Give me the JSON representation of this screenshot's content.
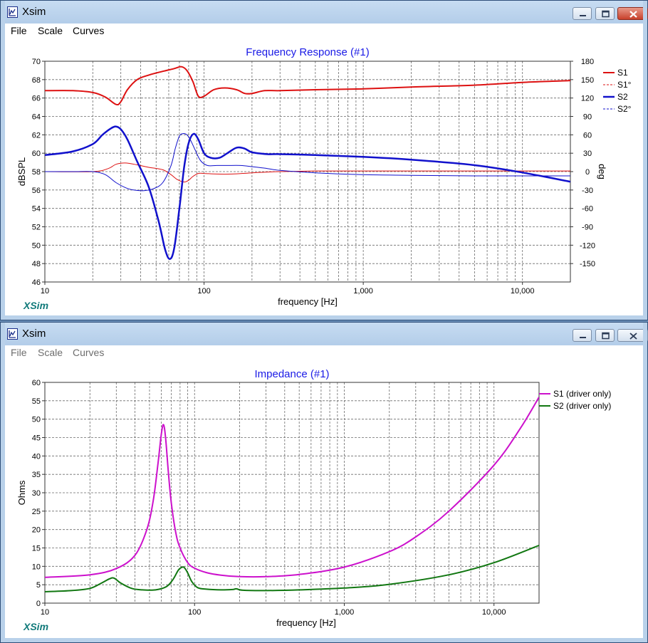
{
  "windows": [
    {
      "title": "Xsim",
      "menu": [
        "File",
        "Scale",
        "Curves"
      ],
      "active": true,
      "chart": {
        "title": "Frequency Response (#1)",
        "watermark": "XSim",
        "title_color": "#1a1ae6"
      }
    },
    {
      "title": "Xsim",
      "menu": [
        "File",
        "Scale",
        "Curves"
      ],
      "active": false,
      "chart": {
        "title": "Impedance (#1)",
        "watermark": "XSim",
        "title_color": "#1a1ae6"
      }
    }
  ],
  "chart_data": [
    {
      "type": "line",
      "title": "Frequency Response (#1)",
      "xlabel": "frequency [Hz]",
      "ylabel": "dBSPL",
      "y2label": "deg",
      "xscale": "log",
      "xlim": [
        10,
        20000
      ],
      "ylim": [
        46,
        70
      ],
      "y2lim": [
        -180,
        180
      ],
      "xticks": [
        10,
        100,
        1000,
        10000
      ],
      "xtick_labels": [
        "10",
        "100",
        "1,000",
        "10,000"
      ],
      "yticks": [
        46,
        48,
        50,
        52,
        54,
        56,
        58,
        60,
        62,
        64,
        66,
        68,
        70
      ],
      "y2ticks": [
        -150,
        -120,
        -90,
        -60,
        -30,
        0,
        30,
        60,
        90,
        120,
        150,
        180
      ],
      "grid": true,
      "legend_position": "right",
      "series": [
        {
          "name": "S1",
          "axis": "left",
          "color": "#dd1111",
          "width": 2,
          "dash": false,
          "x": [
            10,
            15,
            20,
            24,
            28,
            30,
            33,
            38,
            45,
            55,
            65,
            72,
            78,
            85,
            92,
            100,
            115,
            135,
            160,
            180,
            200,
            240,
            300,
            500,
            1000,
            2000,
            5000,
            10000,
            20000
          ],
          "y": [
            66.8,
            66.8,
            66.6,
            66.1,
            65.3,
            65.6,
            66.9,
            68,
            68.5,
            68.9,
            69.2,
            69.4,
            69.0,
            67.8,
            66.2,
            66.2,
            66.9,
            67.1,
            66.9,
            66.5,
            66.5,
            66.8,
            66.8,
            66.9,
            67.0,
            67.2,
            67.4,
            67.7,
            67.9
          ]
        },
        {
          "name": "S1°",
          "axis": "right",
          "color": "#dd1111",
          "width": 1,
          "dash": true,
          "x": [
            10,
            20,
            25,
            28,
            32,
            38,
            45,
            55,
            62,
            68,
            75,
            80,
            85,
            92,
            100,
            120,
            150,
            200,
            300,
            500,
            1000,
            2000,
            5000,
            10000,
            20000
          ],
          "y": [
            0,
            0,
            5,
            12,
            14,
            11,
            7,
            3,
            -5,
            -13,
            -17,
            -14,
            -8,
            -3,
            -3,
            -4,
            -4,
            -2,
            0,
            1,
            1,
            1,
            1,
            1,
            1
          ]
        },
        {
          "name": "S2",
          "axis": "left",
          "color": "#1111cc",
          "width": 2.5,
          "dash": false,
          "x": [
            10,
            15,
            20,
            23,
            26,
            28,
            30,
            33,
            38,
            45,
            52,
            57,
            61,
            65,
            70,
            75,
            80,
            86,
            92,
            100,
            110,
            125,
            140,
            160,
            180,
            200,
            250,
            300,
            500,
            1000,
            2000,
            5000,
            10000,
            20000
          ],
          "y": [
            59.8,
            60.2,
            61.0,
            62.0,
            62.7,
            62.9,
            62.6,
            61.5,
            59.1,
            56.3,
            52.5,
            49.5,
            48.5,
            49.7,
            54.0,
            58.5,
            61.1,
            62.1,
            61.5,
            60.0,
            59.5,
            59.5,
            60.0,
            60.6,
            60.5,
            60.1,
            59.9,
            59.9,
            59.8,
            59.6,
            59.3,
            58.7,
            57.9,
            56.9
          ]
        },
        {
          "name": "S2°",
          "axis": "right",
          "color": "#1111cc",
          "width": 1,
          "dash": true,
          "x": [
            10,
            15,
            20,
            24,
            28,
            32,
            36,
            42,
            48,
            55,
            62,
            66,
            70,
            74,
            78,
            82,
            88,
            95,
            105,
            120,
            140,
            170,
            200,
            250,
            300,
            500,
            1000,
            2000,
            5000,
            10000,
            20000
          ],
          "y": [
            0,
            0,
            0,
            -5,
            -18,
            -26,
            -30,
            -31,
            -28,
            -18,
            10,
            38,
            58,
            62,
            60,
            52,
            35,
            18,
            10,
            10,
            10,
            10,
            8,
            5,
            2,
            -2,
            -5,
            -6,
            -7,
            -7,
            -7
          ]
        }
      ]
    },
    {
      "type": "line",
      "title": "Impedance (#1)",
      "xlabel": "frequency [Hz]",
      "ylabel": "Ohms",
      "xscale": "log",
      "xlim": [
        10,
        20000
      ],
      "ylim": [
        0,
        60
      ],
      "xticks": [
        10,
        100,
        1000,
        10000
      ],
      "xtick_labels": [
        "10",
        "100",
        "1,000",
        "10,000"
      ],
      "yticks": [
        0,
        5,
        10,
        15,
        20,
        25,
        30,
        35,
        40,
        45,
        50,
        55,
        60
      ],
      "grid": true,
      "legend_position": "right",
      "series": [
        {
          "name": "S1 (driver only)",
          "color": "#cc11cc",
          "width": 2,
          "x": [
            10,
            20,
            30,
            40,
            48,
            53,
            57,
            60,
            62,
            64,
            67,
            70,
            75,
            80,
            90,
            100,
            120,
            150,
            200,
            300,
            500,
            1000,
            2000,
            3000,
            5000,
            10000,
            15000,
            20000
          ],
          "y": [
            7,
            7.7,
            9.4,
            13,
            20,
            28,
            38,
            46,
            48.5,
            45,
            35,
            27,
            19,
            15,
            11,
            9.5,
            8.3,
            7.6,
            7.2,
            7.2,
            7.8,
            9.8,
            14,
            18,
            25,
            37.5,
            47.5,
            56
          ]
        },
        {
          "name": "S2 (driver only)",
          "color": "#117711",
          "width": 2,
          "x": [
            10,
            15,
            20,
            24,
            27,
            29,
            32,
            38,
            45,
            55,
            65,
            72,
            78,
            83,
            86,
            90,
            96,
            105,
            120,
            150,
            180,
            190,
            210,
            300,
            500,
            1000,
            2000,
            5000,
            10000,
            20000
          ],
          "y": [
            3.1,
            3.4,
            4.0,
            5.5,
            6.6,
            6.8,
            5.5,
            4.0,
            3.6,
            3.6,
            4.5,
            6.5,
            9.0,
            9.8,
            9.5,
            8.2,
            5.8,
            4.2,
            3.8,
            3.6,
            3.7,
            3.9,
            3.5,
            3.4,
            3.6,
            4.1,
            5.1,
            7.7,
            11,
            15.7
          ]
        }
      ]
    }
  ]
}
